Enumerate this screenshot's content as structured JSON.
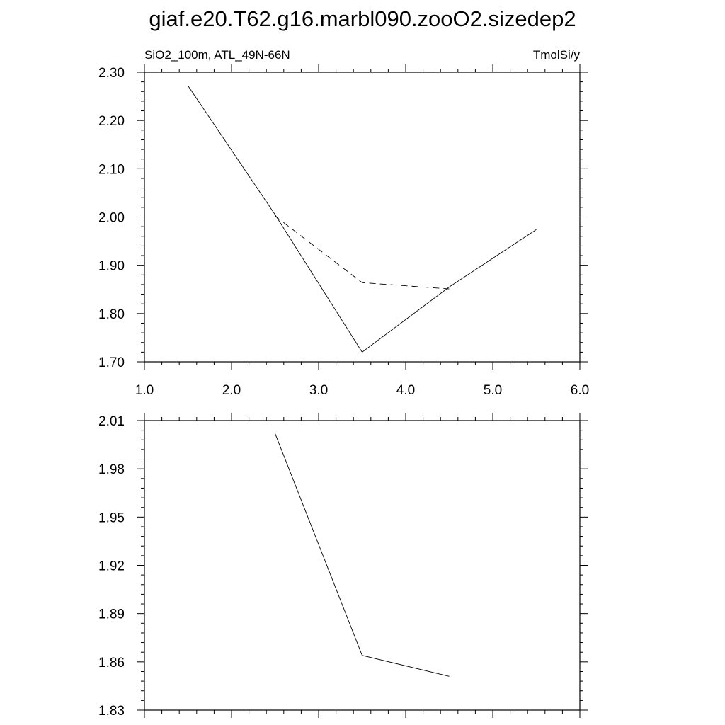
{
  "title": "giaf.e20.T62.g16.marbl090.zooO2.sizedep2",
  "chart_data": [
    {
      "type": "line",
      "left_label": "SiO2_100m, ATL_49N-66N",
      "right_label": "TmolSi/y",
      "xlim": [
        1.0,
        6.0
      ],
      "ylim": [
        1.7,
        2.3
      ],
      "x_ticks": [
        "1.0",
        "2.0",
        "3.0",
        "4.0",
        "5.0",
        "6.0"
      ],
      "y_ticks": [
        "1.70",
        "1.80",
        "1.90",
        "2.00",
        "2.10",
        "2.20",
        "2.30"
      ],
      "series": [
        {
          "style": "solid",
          "color": "#000000",
          "x": [
            1.5,
            2.5,
            3.5,
            4.5,
            5.5
          ],
          "y": [
            2.272,
            2.005,
            1.72,
            1.855,
            1.974
          ]
        },
        {
          "style": "dashed",
          "color": "#000000",
          "x": [
            2.5,
            3.5,
            4.5
          ],
          "y": [
            2.002,
            1.864,
            1.851
          ]
        }
      ]
    },
    {
      "type": "line",
      "xlim": [
        1.0,
        6.0
      ],
      "ylim": [
        1.83,
        2.01
      ],
      "x_ticks": [],
      "y_ticks": [
        "1.83",
        "1.86",
        "1.89",
        "1.92",
        "1.95",
        "1.98",
        "2.01"
      ],
      "series": [
        {
          "style": "solid",
          "color": "#000000",
          "x": [
            2.5,
            3.5,
            4.5
          ],
          "y": [
            2.002,
            1.864,
            1.851
          ]
        }
      ]
    }
  ]
}
